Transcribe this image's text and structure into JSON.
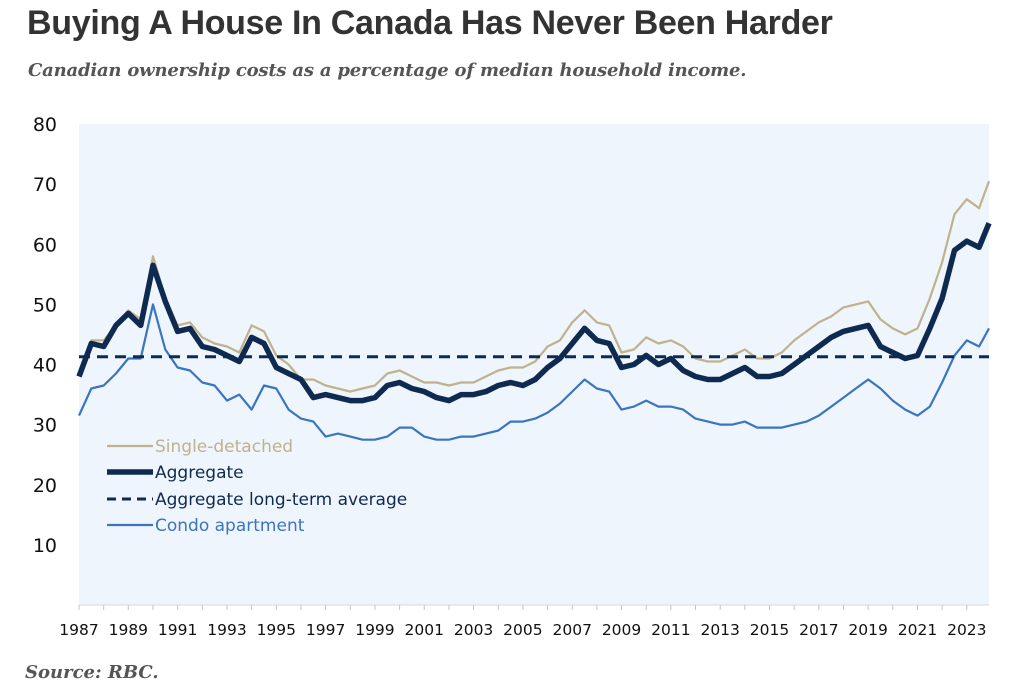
{
  "header": {
    "title": "Buying A House In Canada Has Never Been Harder",
    "subtitle": "Canadian ownership costs as a percentage of median household income."
  },
  "footer": {
    "source": "Source: RBC."
  },
  "colors": {
    "plot_background": "#eef5fc",
    "single_detached": "#bfb28c",
    "aggregate": "#0f2a50",
    "aggregate_avg": "#0f2a50",
    "condo": "#3b74c0"
  },
  "chart_data": {
    "type": "line",
    "title": "Buying A House In Canada Has Never Been Harder",
    "subtitle": "Canadian ownership costs as a percentage of median household income.",
    "xlabel": "",
    "ylabel": "",
    "xlim": [
      1987,
      2023.9
    ],
    "ylim": [
      0,
      80
    ],
    "yticks": [
      10,
      20,
      30,
      40,
      50,
      60,
      70,
      80
    ],
    "xticks": [
      "1987",
      "1989",
      "1991",
      "1993",
      "1995",
      "1997",
      "1999",
      "2001",
      "2003",
      "2005",
      "2007",
      "2009",
      "2011",
      "2013",
      "2015",
      "2017",
      "2019",
      "2021",
      "2023"
    ],
    "grid": false,
    "legend_position": "lower-left",
    "x": [
      1987.0,
      1987.5,
      1988.0,
      1988.5,
      1989.0,
      1989.5,
      1990.0,
      1990.5,
      1991.0,
      1991.5,
      1992.0,
      1992.5,
      1993.0,
      1993.5,
      1994.0,
      1994.5,
      1995.0,
      1995.5,
      1996.0,
      1996.5,
      1997.0,
      1997.5,
      1998.0,
      1998.5,
      1999.0,
      1999.5,
      2000.0,
      2000.5,
      2001.0,
      2001.5,
      2002.0,
      2002.5,
      2003.0,
      2003.5,
      2004.0,
      2004.5,
      2005.0,
      2005.5,
      2006.0,
      2006.5,
      2007.0,
      2007.5,
      2008.0,
      2008.5,
      2009.0,
      2009.5,
      2010.0,
      2010.5,
      2011.0,
      2011.5,
      2012.0,
      2012.5,
      2013.0,
      2013.5,
      2014.0,
      2014.5,
      2015.0,
      2015.5,
      2016.0,
      2016.5,
      2017.0,
      2017.5,
      2018.0,
      2018.5,
      2019.0,
      2019.5,
      2020.0,
      2020.5,
      2021.0,
      2021.5,
      2022.0,
      2022.5,
      2023.0,
      2023.5,
      2023.9
    ],
    "series": [
      {
        "name": "Single-detached",
        "style": "solid-thin",
        "values": [
          38.5,
          44.0,
          44.0,
          46.5,
          49.0,
          47.5,
          58.0,
          51.0,
          46.5,
          47.0,
          44.5,
          43.5,
          43.0,
          42.0,
          46.5,
          45.5,
          41.5,
          40.0,
          37.5,
          37.5,
          36.5,
          36.0,
          35.5,
          36.0,
          36.5,
          38.5,
          39.0,
          38.0,
          37.0,
          37.0,
          36.5,
          37.0,
          37.0,
          38.0,
          39.0,
          39.5,
          39.5,
          40.5,
          43.0,
          44.0,
          47.0,
          49.0,
          47.0,
          46.5,
          42.0,
          42.5,
          44.5,
          43.5,
          44.0,
          43.0,
          41.0,
          40.5,
          40.5,
          41.5,
          42.5,
          41.0,
          41.0,
          42.0,
          44.0,
          45.5,
          47.0,
          48.0,
          49.5,
          50.0,
          50.5,
          47.5,
          46.0,
          45.0,
          46.0,
          51.0,
          57.0,
          65.0,
          67.5,
          66.0,
          70.5
        ]
      },
      {
        "name": "Aggregate",
        "style": "solid-thick",
        "values": [
          38.0,
          43.5,
          43.0,
          46.5,
          48.5,
          46.5,
          56.5,
          50.5,
          45.5,
          46.0,
          43.0,
          42.5,
          41.5,
          40.5,
          44.5,
          43.5,
          39.5,
          38.5,
          37.5,
          34.5,
          35.0,
          34.5,
          34.0,
          34.0,
          34.5,
          36.5,
          37.0,
          36.0,
          35.5,
          34.5,
          34.0,
          35.0,
          35.0,
          35.5,
          36.5,
          37.0,
          36.5,
          37.5,
          39.5,
          41.0,
          43.5,
          46.0,
          44.0,
          43.5,
          39.5,
          40.0,
          41.5,
          40.0,
          41.0,
          39.0,
          38.0,
          37.5,
          37.5,
          38.5,
          39.5,
          38.0,
          38.0,
          38.5,
          40.0,
          41.5,
          43.0,
          44.5,
          45.5,
          46.0,
          46.5,
          43.0,
          42.0,
          41.0,
          41.5,
          46.0,
          51.0,
          59.0,
          60.5,
          59.5,
          63.5
        ]
      },
      {
        "name": "Aggregate long-term average",
        "style": "dashed",
        "values": [
          41.3,
          41.3,
          41.3,
          41.3,
          41.3,
          41.3,
          41.3,
          41.3,
          41.3,
          41.3,
          41.3,
          41.3,
          41.3,
          41.3,
          41.3,
          41.3,
          41.3,
          41.3,
          41.3,
          41.3,
          41.3,
          41.3,
          41.3,
          41.3,
          41.3,
          41.3,
          41.3,
          41.3,
          41.3,
          41.3,
          41.3,
          41.3,
          41.3,
          41.3,
          41.3,
          41.3,
          41.3,
          41.3,
          41.3,
          41.3,
          41.3,
          41.3,
          41.3,
          41.3,
          41.3,
          41.3,
          41.3,
          41.3,
          41.3,
          41.3,
          41.3,
          41.3,
          41.3,
          41.3,
          41.3,
          41.3,
          41.3,
          41.3,
          41.3,
          41.3,
          41.3,
          41.3,
          41.3,
          41.3,
          41.3,
          41.3,
          41.3,
          41.3,
          41.3,
          41.3,
          41.3,
          41.3,
          41.3,
          41.3,
          41.3
        ]
      },
      {
        "name": "Condo apartment",
        "style": "solid-thin",
        "values": [
          31.5,
          36.0,
          36.5,
          38.5,
          41.0,
          41.0,
          50.0,
          42.5,
          39.5,
          39.0,
          37.0,
          36.5,
          34.0,
          35.0,
          32.5,
          36.5,
          36.0,
          32.5,
          31.0,
          30.5,
          28.0,
          28.5,
          28.0,
          27.5,
          27.5,
          28.0,
          29.5,
          29.5,
          28.0,
          27.5,
          27.5,
          28.0,
          28.0,
          28.5,
          29.0,
          30.5,
          30.5,
          31.0,
          32.0,
          33.5,
          35.5,
          37.5,
          36.0,
          35.5,
          32.5,
          33.0,
          34.0,
          33.0,
          33.0,
          32.5,
          31.0,
          30.5,
          30.0,
          30.0,
          30.5,
          29.5,
          29.5,
          29.5,
          30.0,
          30.5,
          31.5,
          33.0,
          34.5,
          36.0,
          37.5,
          36.0,
          34.0,
          32.5,
          31.5,
          33.0,
          37.0,
          41.5,
          44.0,
          43.0,
          46.0
        ]
      }
    ]
  }
}
